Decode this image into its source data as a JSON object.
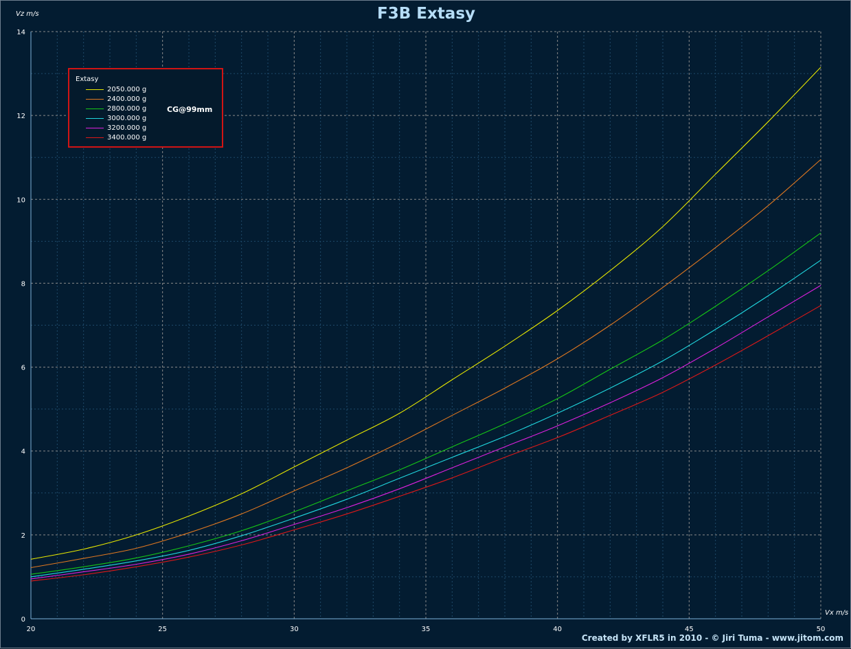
{
  "chart_data": {
    "type": "line",
    "title": "F3B Extasy",
    "xlabel": "Vx m/s",
    "ylabel": "Vz m/s",
    "xlim": [
      20,
      50
    ],
    "ylim": [
      0,
      14
    ],
    "x_ticks": [
      20,
      25,
      30,
      35,
      40,
      45,
      50
    ],
    "y_ticks": [
      0,
      2,
      4,
      6,
      8,
      10,
      12,
      14
    ],
    "grid": true,
    "legend_title": "Extasy",
    "legend_position": "top-left",
    "annotation": "CG@99mm",
    "x": [
      20,
      22,
      24,
      26,
      28,
      30,
      32,
      34,
      36,
      38,
      40,
      42,
      44,
      46,
      48,
      50
    ],
    "series": [
      {
        "name": "2050.000 g",
        "color": "#e8e800",
        "values": [
          1.42,
          1.66,
          2.0,
          2.45,
          2.98,
          3.62,
          4.26,
          4.9,
          5.7,
          6.5,
          7.35,
          8.3,
          9.35,
          10.6,
          11.85,
          13.15
        ]
      },
      {
        "name": "2400.000 g",
        "color": "#e07820",
        "values": [
          1.22,
          1.44,
          1.68,
          2.05,
          2.5,
          3.05,
          3.6,
          4.2,
          4.85,
          5.5,
          6.2,
          7.0,
          7.9,
          8.85,
          9.85,
          10.95
        ]
      },
      {
        "name": "2800.000 g",
        "color": "#16c816",
        "values": [
          1.06,
          1.24,
          1.45,
          1.74,
          2.1,
          2.55,
          3.05,
          3.55,
          4.1,
          4.65,
          5.25,
          5.95,
          6.65,
          7.45,
          8.3,
          9.2
        ]
      },
      {
        "name": "3000.000 g",
        "color": "#20d8e0",
        "values": [
          1.0,
          1.18,
          1.38,
          1.63,
          1.98,
          2.4,
          2.85,
          3.35,
          3.85,
          4.35,
          4.9,
          5.5,
          6.15,
          6.9,
          7.7,
          8.55
        ]
      },
      {
        "name": "3200.000 g",
        "color": "#e020e0",
        "values": [
          0.95,
          1.12,
          1.3,
          1.54,
          1.86,
          2.25,
          2.65,
          3.1,
          3.6,
          4.1,
          4.6,
          5.15,
          5.75,
          6.45,
          7.2,
          7.95
        ]
      },
      {
        "name": "3400.000 g",
        "color": "#e01818",
        "values": [
          0.9,
          1.05,
          1.24,
          1.47,
          1.76,
          2.12,
          2.5,
          2.92,
          3.36,
          3.85,
          4.32,
          4.85,
          5.4,
          6.05,
          6.75,
          7.47
        ]
      }
    ]
  },
  "credit": "Created by XFLR5 in 2010 - © Jiri Tuma - www.jitom.com",
  "colors": {
    "background": "#031c31",
    "axis": "#7eb2dc",
    "grid_major": "#8a8a8a",
    "grid_minor": "#1e4a6a",
    "legend_border": "#d21414",
    "title": "#b6ddf7"
  }
}
